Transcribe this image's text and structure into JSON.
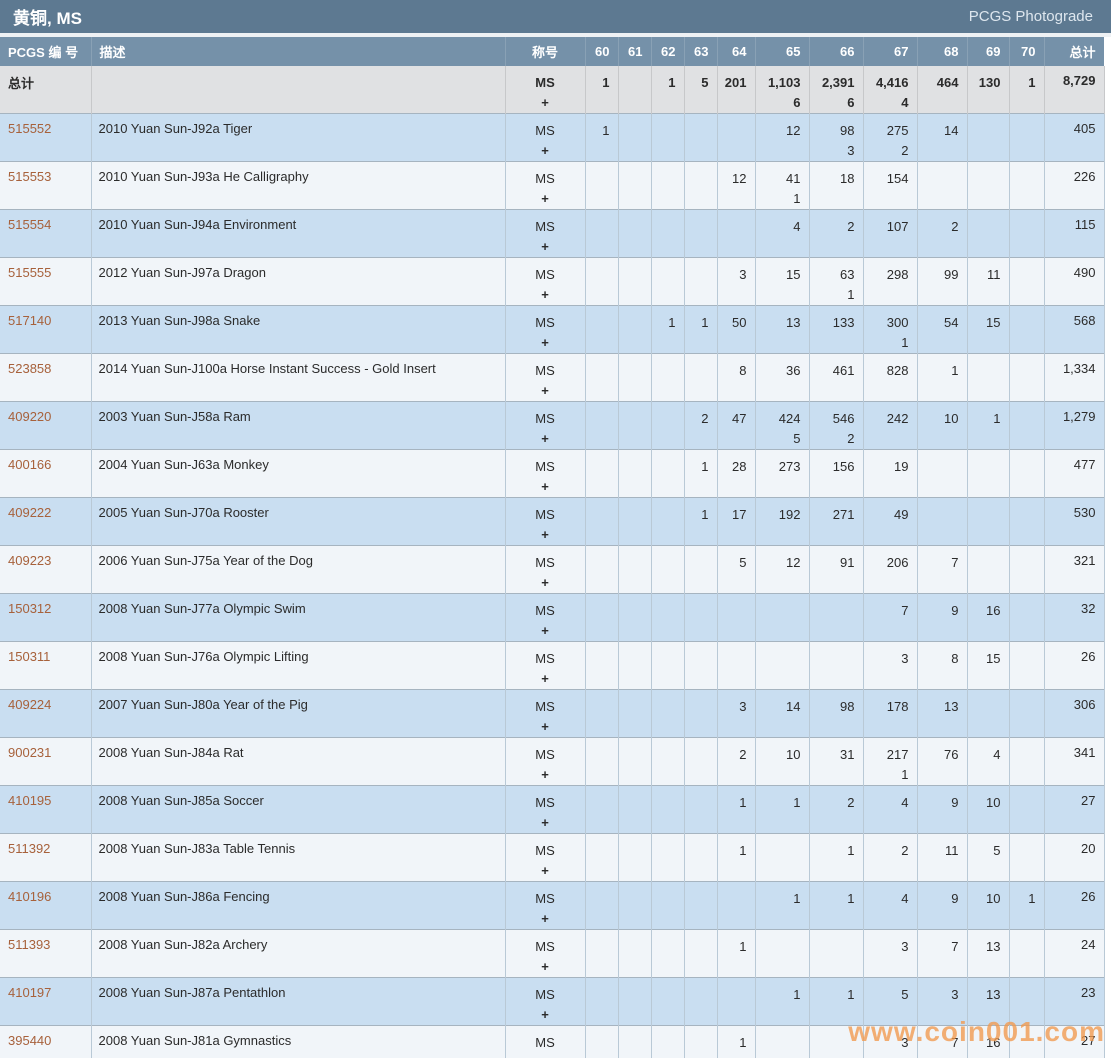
{
  "title_bar": {
    "title": "黄铜, MS",
    "photograde_link": "PCGS Photograde"
  },
  "watermark": "www.coin001.com",
  "colors": {
    "title_bar_bg": "#5d7991",
    "header_bg": "#7591a9",
    "total_row_bg": "#e0e1e3",
    "row_blue_bg": "#c9def1",
    "row_white_bg": "#f1f5f9",
    "pcgs_link": "#a7613b",
    "watermark": "#f29a4e"
  },
  "table": {
    "headers": {
      "pcgs": "PCGS 编 号",
      "description": "描述",
      "designation": "称号",
      "grades": [
        "60",
        "61",
        "62",
        "63",
        "64",
        "65",
        "66",
        "67",
        "68",
        "69",
        "70"
      ],
      "total": "总计"
    },
    "total_row": {
      "label": "总计",
      "designation": "MS",
      "designation_plus": "+",
      "grades": [
        [
          "1",
          ""
        ],
        [
          "",
          ""
        ],
        [
          "1",
          ""
        ],
        [
          "5",
          ""
        ],
        [
          "201",
          ""
        ],
        [
          "1,103",
          "6"
        ],
        [
          "2,391",
          "6"
        ],
        [
          "4,416",
          "4"
        ],
        [
          "464",
          ""
        ],
        [
          "130",
          ""
        ],
        [
          "1",
          ""
        ]
      ],
      "total": "8,729"
    },
    "rows": [
      {
        "pcgs": "515552",
        "desc": "2010 Yuan Sun-J92a Tiger",
        "designation": "MS",
        "designation_plus": "+",
        "grades": [
          [
            "1",
            ""
          ],
          [
            "",
            ""
          ],
          [
            "",
            ""
          ],
          [
            "",
            ""
          ],
          [
            "",
            ""
          ],
          [
            "12",
            ""
          ],
          [
            "98",
            "3"
          ],
          [
            "275",
            "2"
          ],
          [
            "14",
            ""
          ],
          [
            "",
            ""
          ],
          [
            "",
            ""
          ]
        ],
        "total": "405"
      },
      {
        "pcgs": "515553",
        "desc": "2010 Yuan Sun-J93a He Calligraphy",
        "designation": "MS",
        "designation_plus": "+",
        "grades": [
          [
            "",
            ""
          ],
          [
            "",
            ""
          ],
          [
            "",
            ""
          ],
          [
            "",
            ""
          ],
          [
            "12",
            ""
          ],
          [
            "41",
            "1"
          ],
          [
            "18",
            ""
          ],
          [
            "154",
            ""
          ],
          [
            "",
            ""
          ],
          [
            "",
            ""
          ],
          [
            "",
            ""
          ]
        ],
        "total": "226"
      },
      {
        "pcgs": "515554",
        "desc": "2010 Yuan Sun-J94a Environment",
        "designation": "MS",
        "designation_plus": "+",
        "grades": [
          [
            "",
            ""
          ],
          [
            "",
            ""
          ],
          [
            "",
            ""
          ],
          [
            "",
            ""
          ],
          [
            "",
            ""
          ],
          [
            "4",
            ""
          ],
          [
            "2",
            ""
          ],
          [
            "107",
            ""
          ],
          [
            "2",
            ""
          ],
          [
            "",
            ""
          ],
          [
            "",
            ""
          ]
        ],
        "total": "115"
      },
      {
        "pcgs": "515555",
        "desc": "2012 Yuan Sun-J97a Dragon",
        "designation": "MS",
        "designation_plus": "+",
        "grades": [
          [
            "",
            ""
          ],
          [
            "",
            ""
          ],
          [
            "",
            ""
          ],
          [
            "",
            ""
          ],
          [
            "3",
            ""
          ],
          [
            "15",
            ""
          ],
          [
            "63",
            "1"
          ],
          [
            "298",
            ""
          ],
          [
            "99",
            ""
          ],
          [
            "11",
            ""
          ],
          [
            "",
            ""
          ]
        ],
        "total": "490"
      },
      {
        "pcgs": "517140",
        "desc": "2013 Yuan Sun-J98a Snake",
        "designation": "MS",
        "designation_plus": "+",
        "grades": [
          [
            "",
            ""
          ],
          [
            "",
            ""
          ],
          [
            "1",
            ""
          ],
          [
            "1",
            ""
          ],
          [
            "50",
            ""
          ],
          [
            "13",
            ""
          ],
          [
            "133",
            ""
          ],
          [
            "300",
            "1"
          ],
          [
            "54",
            ""
          ],
          [
            "15",
            ""
          ],
          [
            "",
            ""
          ]
        ],
        "total": "568"
      },
      {
        "pcgs": "523858",
        "desc": "2014 Yuan Sun-J100a Horse Instant Success - Gold Insert",
        "designation": "MS",
        "designation_plus": "+",
        "grades": [
          [
            "",
            ""
          ],
          [
            "",
            ""
          ],
          [
            "",
            ""
          ],
          [
            "",
            ""
          ],
          [
            "8",
            ""
          ],
          [
            "36",
            ""
          ],
          [
            "461",
            ""
          ],
          [
            "828",
            ""
          ],
          [
            "1",
            ""
          ],
          [
            "",
            ""
          ],
          [
            "",
            ""
          ]
        ],
        "total": "1,334"
      },
      {
        "pcgs": "409220",
        "desc": "2003 Yuan Sun-J58a Ram",
        "designation": "MS",
        "designation_plus": "+",
        "grades": [
          [
            "",
            ""
          ],
          [
            "",
            ""
          ],
          [
            "",
            ""
          ],
          [
            "2",
            ""
          ],
          [
            "47",
            ""
          ],
          [
            "424",
            "5"
          ],
          [
            "546",
            "2"
          ],
          [
            "242",
            ""
          ],
          [
            "10",
            ""
          ],
          [
            "1",
            ""
          ],
          [
            "",
            ""
          ]
        ],
        "total": "1,279"
      },
      {
        "pcgs": "400166",
        "desc": "2004 Yuan Sun-J63a Monkey",
        "designation": "MS",
        "designation_plus": "+",
        "grades": [
          [
            "",
            ""
          ],
          [
            "",
            ""
          ],
          [
            "",
            ""
          ],
          [
            "1",
            ""
          ],
          [
            "28",
            ""
          ],
          [
            "273",
            ""
          ],
          [
            "156",
            ""
          ],
          [
            "19",
            ""
          ],
          [
            "",
            ""
          ],
          [
            "",
            ""
          ],
          [
            "",
            ""
          ]
        ],
        "total": "477"
      },
      {
        "pcgs": "409222",
        "desc": "2005 Yuan Sun-J70a Rooster",
        "designation": "MS",
        "designation_plus": "+",
        "grades": [
          [
            "",
            ""
          ],
          [
            "",
            ""
          ],
          [
            "",
            ""
          ],
          [
            "1",
            ""
          ],
          [
            "17",
            ""
          ],
          [
            "192",
            ""
          ],
          [
            "271",
            ""
          ],
          [
            "49",
            ""
          ],
          [
            "",
            ""
          ],
          [
            "",
            ""
          ],
          [
            "",
            ""
          ]
        ],
        "total": "530"
      },
      {
        "pcgs": "409223",
        "desc": "2006 Yuan Sun-J75a Year of the Dog",
        "designation": "MS",
        "designation_plus": "+",
        "grades": [
          [
            "",
            ""
          ],
          [
            "",
            ""
          ],
          [
            "",
            ""
          ],
          [
            "",
            ""
          ],
          [
            "5",
            ""
          ],
          [
            "12",
            ""
          ],
          [
            "91",
            ""
          ],
          [
            "206",
            ""
          ],
          [
            "7",
            ""
          ],
          [
            "",
            ""
          ],
          [
            "",
            ""
          ]
        ],
        "total": "321"
      },
      {
        "pcgs": "150312",
        "desc": "2008 Yuan Sun-J77a Olympic Swim",
        "designation": "MS",
        "designation_plus": "+",
        "grades": [
          [
            "",
            ""
          ],
          [
            "",
            ""
          ],
          [
            "",
            ""
          ],
          [
            "",
            ""
          ],
          [
            "",
            ""
          ],
          [
            "",
            ""
          ],
          [
            "",
            ""
          ],
          [
            "7",
            ""
          ],
          [
            "9",
            ""
          ],
          [
            "16",
            ""
          ],
          [
            "",
            ""
          ]
        ],
        "total": "32"
      },
      {
        "pcgs": "150311",
        "desc": "2008 Yuan Sun-J76a Olympic Lifting",
        "designation": "MS",
        "designation_plus": "+",
        "grades": [
          [
            "",
            ""
          ],
          [
            "",
            ""
          ],
          [
            "",
            ""
          ],
          [
            "",
            ""
          ],
          [
            "",
            ""
          ],
          [
            "",
            ""
          ],
          [
            "",
            ""
          ],
          [
            "3",
            ""
          ],
          [
            "8",
            ""
          ],
          [
            "15",
            ""
          ],
          [
            "",
            ""
          ]
        ],
        "total": "26"
      },
      {
        "pcgs": "409224",
        "desc": "2007 Yuan Sun-J80a Year of the Pig",
        "designation": "MS",
        "designation_plus": "+",
        "grades": [
          [
            "",
            ""
          ],
          [
            "",
            ""
          ],
          [
            "",
            ""
          ],
          [
            "",
            ""
          ],
          [
            "3",
            ""
          ],
          [
            "14",
            ""
          ],
          [
            "98",
            ""
          ],
          [
            "178",
            ""
          ],
          [
            "13",
            ""
          ],
          [
            "",
            ""
          ],
          [
            "",
            ""
          ]
        ],
        "total": "306"
      },
      {
        "pcgs": "900231",
        "desc": "2008 Yuan Sun-J84a Rat",
        "designation": "MS",
        "designation_plus": "+",
        "grades": [
          [
            "",
            ""
          ],
          [
            "",
            ""
          ],
          [
            "",
            ""
          ],
          [
            "",
            ""
          ],
          [
            "2",
            ""
          ],
          [
            "10",
            ""
          ],
          [
            "31",
            ""
          ],
          [
            "217",
            "1"
          ],
          [
            "76",
            ""
          ],
          [
            "4",
            ""
          ],
          [
            "",
            ""
          ]
        ],
        "total": "341"
      },
      {
        "pcgs": "410195",
        "desc": "2008 Yuan Sun-J85a Soccer",
        "designation": "MS",
        "designation_plus": "+",
        "grades": [
          [
            "",
            ""
          ],
          [
            "",
            ""
          ],
          [
            "",
            ""
          ],
          [
            "",
            ""
          ],
          [
            "1",
            ""
          ],
          [
            "1",
            ""
          ],
          [
            "2",
            ""
          ],
          [
            "4",
            ""
          ],
          [
            "9",
            ""
          ],
          [
            "10",
            ""
          ],
          [
            "",
            ""
          ]
        ],
        "total": "27"
      },
      {
        "pcgs": "511392",
        "desc": "2008 Yuan Sun-J83a Table Tennis",
        "designation": "MS",
        "designation_plus": "+",
        "grades": [
          [
            "",
            ""
          ],
          [
            "",
            ""
          ],
          [
            "",
            ""
          ],
          [
            "",
            ""
          ],
          [
            "1",
            ""
          ],
          [
            "",
            ""
          ],
          [
            "1",
            ""
          ],
          [
            "2",
            ""
          ],
          [
            "11",
            ""
          ],
          [
            "5",
            ""
          ],
          [
            "",
            ""
          ]
        ],
        "total": "20"
      },
      {
        "pcgs": "410196",
        "desc": "2008 Yuan Sun-J86a Fencing",
        "designation": "MS",
        "designation_plus": "+",
        "grades": [
          [
            "",
            ""
          ],
          [
            "",
            ""
          ],
          [
            "",
            ""
          ],
          [
            "",
            ""
          ],
          [
            "",
            ""
          ],
          [
            "1",
            ""
          ],
          [
            "1",
            ""
          ],
          [
            "4",
            ""
          ],
          [
            "9",
            ""
          ],
          [
            "10",
            ""
          ],
          [
            "1",
            ""
          ]
        ],
        "total": "26"
      },
      {
        "pcgs": "511393",
        "desc": "2008 Yuan Sun-J82a Archery",
        "designation": "MS",
        "designation_plus": "+",
        "grades": [
          [
            "",
            ""
          ],
          [
            "",
            ""
          ],
          [
            "",
            ""
          ],
          [
            "",
            ""
          ],
          [
            "1",
            ""
          ],
          [
            "",
            ""
          ],
          [
            "",
            ""
          ],
          [
            "3",
            ""
          ],
          [
            "7",
            ""
          ],
          [
            "13",
            ""
          ],
          [
            "",
            ""
          ]
        ],
        "total": "24"
      },
      {
        "pcgs": "410197",
        "desc": "2008 Yuan Sun-J87a Pentathlon",
        "designation": "MS",
        "designation_plus": "+",
        "grades": [
          [
            "",
            ""
          ],
          [
            "",
            ""
          ],
          [
            "",
            ""
          ],
          [
            "",
            ""
          ],
          [
            "",
            ""
          ],
          [
            "1",
            ""
          ],
          [
            "1",
            ""
          ],
          [
            "5",
            ""
          ],
          [
            "3",
            ""
          ],
          [
            "13",
            ""
          ],
          [
            "",
            ""
          ]
        ],
        "total": "23"
      },
      {
        "pcgs": "395440",
        "desc": "2008 Yuan Sun-J81a Gymnastics",
        "designation": "MS",
        "designation_plus": "+",
        "grades": [
          [
            "",
            ""
          ],
          [
            "",
            ""
          ],
          [
            "",
            ""
          ],
          [
            "",
            ""
          ],
          [
            "1",
            ""
          ],
          [
            "",
            ""
          ],
          [
            "",
            ""
          ],
          [
            "3",
            ""
          ],
          [
            "7",
            ""
          ],
          [
            "16",
            ""
          ],
          [
            "",
            ""
          ]
        ],
        "total": "27"
      }
    ]
  }
}
